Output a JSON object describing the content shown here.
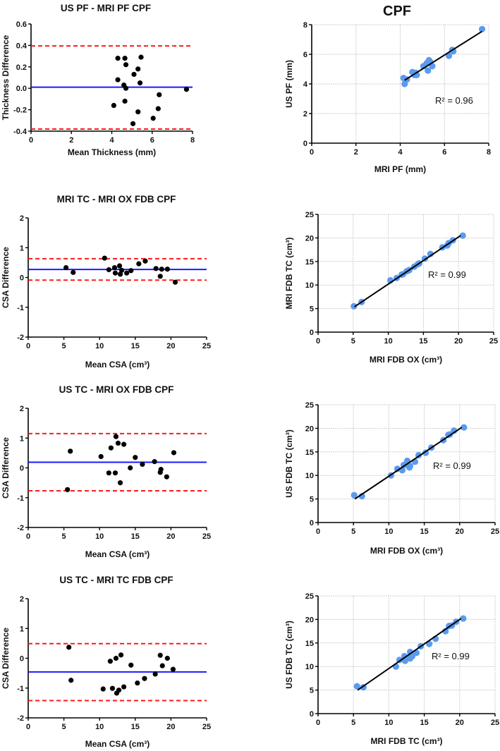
{
  "figure_title": "CPF",
  "colors": {
    "bland_altman_points": "#000000",
    "mean_line": "#1a1aff",
    "limits_of_agreement": "#ff1a1a",
    "scatter_points": "#5b9bef",
    "regression_line": "#000000",
    "grid": "#d0d0d0"
  },
  "chart_data": [
    {
      "type": "scatter",
      "title": "US PF - MRI PF CPF",
      "xlabel": "Mean Thickness (mm)",
      "ylabel": "Thickness Difference",
      "xlim": [
        0,
        8
      ],
      "ylim": [
        -0.4,
        0.6
      ],
      "xticks": [
        0,
        2,
        4,
        6,
        8
      ],
      "yticks": [
        "-0.4",
        "-0.2",
        "0.0",
        "0.2",
        "0.4",
        "0.6"
      ],
      "grid": false,
      "mean": 0.01,
      "limits": [
        0.395,
        -0.38
      ],
      "points": [
        [
          4.1,
          -0.16
        ],
        [
          4.3,
          0.28
        ],
        [
          4.3,
          0.08
        ],
        [
          4.65,
          0.28
        ],
        [
          4.7,
          0.22
        ],
        [
          4.6,
          0.03
        ],
        [
          4.7,
          0.0
        ],
        [
          4.65,
          -0.12
        ],
        [
          5.1,
          0.13
        ],
        [
          5.3,
          0.18
        ],
        [
          5.45,
          0.29
        ],
        [
          5.4,
          0.05
        ],
        [
          5.3,
          -0.22
        ],
        [
          5.05,
          -0.33
        ],
        [
          6.05,
          -0.28
        ],
        [
          6.3,
          -0.19
        ],
        [
          6.35,
          -0.06
        ],
        [
          7.7,
          -0.01
        ]
      ]
    },
    {
      "type": "scatter",
      "title": "MRI TC - MRI OX FDB CPF",
      "xlabel": "Mean CSA (cm³)",
      "ylabel": "CSA Difference",
      "xlim": [
        0,
        25
      ],
      "ylim": [
        -2,
        2
      ],
      "xticks": [
        0,
        5,
        10,
        15,
        20,
        25
      ],
      "yticks": [
        "-2",
        "-1",
        "0",
        "1",
        "2"
      ],
      "grid": false,
      "mean": 0.27,
      "limits": [
        0.63,
        -0.09
      ],
      "points": [
        [
          5.3,
          0.33
        ],
        [
          6.3,
          0.17
        ],
        [
          10.7,
          0.65
        ],
        [
          11.3,
          0.26
        ],
        [
          12.1,
          0.33
        ],
        [
          12.2,
          0.15
        ],
        [
          12.8,
          0.39
        ],
        [
          12.9,
          0.11
        ],
        [
          13.1,
          0.24
        ],
        [
          13.8,
          0.15
        ],
        [
          14.4,
          0.23
        ],
        [
          15.5,
          0.46
        ],
        [
          16.4,
          0.55
        ],
        [
          17.9,
          0.3
        ],
        [
          18.5,
          0.04
        ],
        [
          18.7,
          0.28
        ],
        [
          19.5,
          0.28
        ],
        [
          20.6,
          -0.16
        ]
      ]
    },
    {
      "type": "scatter",
      "title": "US TC - MRI OX FDB CPF",
      "xlabel": "Mean CSA (cm³)",
      "ylabel": "CSA Difference",
      "xlim": [
        0,
        25
      ],
      "ylim": [
        -2,
        2
      ],
      "xticks": [
        0,
        5,
        10,
        15,
        20,
        25
      ],
      "yticks": [
        "-2",
        "-1",
        "0",
        "1",
        "2"
      ],
      "grid": false,
      "mean": 0.19,
      "limits": [
        1.15,
        -0.77
      ],
      "points": [
        [
          5.5,
          -0.73
        ],
        [
          5.9,
          0.56
        ],
        [
          10.2,
          0.38
        ],
        [
          11.3,
          -0.17
        ],
        [
          11.6,
          0.67
        ],
        [
          12.2,
          -0.17
        ],
        [
          12.3,
          1.05
        ],
        [
          12.6,
          0.83
        ],
        [
          12.9,
          -0.5
        ],
        [
          13.4,
          0.79
        ],
        [
          14.3,
          0.0
        ],
        [
          15.0,
          0.35
        ],
        [
          16.0,
          0.12
        ],
        [
          17.7,
          0.21
        ],
        [
          18.5,
          -0.15
        ],
        [
          18.6,
          -0.05
        ],
        [
          19.4,
          -0.3
        ],
        [
          20.4,
          0.51
        ]
      ]
    },
    {
      "type": "scatter",
      "title": "US TC - MRI TC FDB CPF",
      "xlabel": "Mean CSA (cm³)",
      "ylabel": "CSA Difference",
      "xlim": [
        0,
        25
      ],
      "ylim": [
        -2,
        2
      ],
      "xticks": [
        0,
        5,
        10,
        15,
        20,
        25
      ],
      "yticks": [
        "-2",
        "-1",
        "0",
        "1",
        "2"
      ],
      "grid": false,
      "mean": -0.46,
      "limits": [
        0.49,
        -1.42
      ],
      "points": [
        [
          5.7,
          0.37
        ],
        [
          6.0,
          -0.74
        ],
        [
          10.5,
          -1.03
        ],
        [
          11.5,
          -0.1
        ],
        [
          11.8,
          -1.01
        ],
        [
          12.3,
          0.0
        ],
        [
          12.4,
          -1.17
        ],
        [
          12.7,
          -1.07
        ],
        [
          13.0,
          0.11
        ],
        [
          13.4,
          -0.96
        ],
        [
          14.4,
          -0.23
        ],
        [
          15.3,
          -0.83
        ],
        [
          16.3,
          -0.68
        ],
        [
          17.8,
          -0.53
        ],
        [
          18.5,
          0.1
        ],
        [
          18.8,
          -0.25
        ],
        [
          19.5,
          0.0
        ],
        [
          20.3,
          -0.37
        ]
      ]
    },
    {
      "type": "scatter",
      "title": "",
      "xlabel": "MRI PF (mm)",
      "ylabel": "US PF (mm)",
      "xlim": [
        0,
        8
      ],
      "ylim": [
        0,
        8
      ],
      "xticks": [
        0,
        2,
        4,
        6,
        8
      ],
      "yticks": [
        "0",
        "2",
        "4",
        "6",
        "8"
      ],
      "grid": true,
      "annotation": "R² = 0.96",
      "fit_line": [
        [
          4.2,
          4.25
        ],
        [
          7.7,
          7.55
        ]
      ],
      "points": [
        [
          4.15,
          4.4
        ],
        [
          4.2,
          4.0
        ],
        [
          4.3,
          4.3
        ],
        [
          4.55,
          4.8
        ],
        [
          4.6,
          4.75
        ],
        [
          4.65,
          4.6
        ],
        [
          4.75,
          4.6
        ],
        [
          4.7,
          4.75
        ],
        [
          5.05,
          5.2
        ],
        [
          5.2,
          5.4
        ],
        [
          5.25,
          4.9
        ],
        [
          5.3,
          5.6
        ],
        [
          5.35,
          5.5
        ],
        [
          5.45,
          5.2
        ],
        [
          6.2,
          5.9
        ],
        [
          6.35,
          6.3
        ],
        [
          6.4,
          6.2
        ],
        [
          7.7,
          7.7
        ]
      ]
    },
    {
      "type": "scatter",
      "title": "",
      "xlabel": "MRI FDB OX (cm³)",
      "ylabel": "MRI FDB TC (cm³)",
      "xlim": [
        0,
        25
      ],
      "ylim": [
        0,
        25
      ],
      "xticks": [
        0,
        5,
        10,
        15,
        20,
        25
      ],
      "yticks": [
        "0",
        "5",
        "10",
        "15",
        "20",
        "25"
      ],
      "grid": true,
      "annotation": "R² = 0.99",
      "fit_line": [
        [
          5.2,
          5.4
        ],
        [
          20.3,
          20.5
        ]
      ],
      "points": [
        [
          5.1,
          5.5
        ],
        [
          6.2,
          6.4
        ],
        [
          10.3,
          11.0
        ],
        [
          11.2,
          11.5
        ],
        [
          11.9,
          12.2
        ],
        [
          12.1,
          12.3
        ],
        [
          12.6,
          12.9
        ],
        [
          12.9,
          13.1
        ],
        [
          13.0,
          13.2
        ],
        [
          13.7,
          13.9
        ],
        [
          14.2,
          14.4
        ],
        [
          14.4,
          14.6
        ],
        [
          15.2,
          15.6
        ],
        [
          16.0,
          16.6
        ],
        [
          17.7,
          18.0
        ],
        [
          18.4,
          18.4
        ],
        [
          18.6,
          18.9
        ],
        [
          19.2,
          19.5
        ],
        [
          20.6,
          20.5
        ]
      ]
    },
    {
      "type": "scatter",
      "title": "",
      "xlabel": "MRI FDB OX (cm³)",
      "ylabel": "US FDB TC (cm³)",
      "xlim": [
        0,
        25
      ],
      "ylim": [
        0,
        25
      ],
      "xticks": [
        0,
        5,
        10,
        15,
        20,
        25
      ],
      "yticks": [
        "0",
        "5",
        "10",
        "15",
        "20",
        "25"
      ],
      "grid": true,
      "annotation": "R² = 0.99",
      "fit_line": [
        [
          5.2,
          5.0
        ],
        [
          20.3,
          20.2
        ]
      ],
      "points": [
        [
          5.1,
          5.8
        ],
        [
          6.2,
          5.6
        ],
        [
          10.3,
          10.0
        ],
        [
          11.2,
          11.4
        ],
        [
          11.9,
          11.1
        ],
        [
          12.1,
          12.2
        ],
        [
          12.6,
          13.1
        ],
        [
          12.7,
          12.1
        ],
        [
          12.9,
          11.7
        ],
        [
          13.0,
          12.0
        ],
        [
          13.7,
          12.9
        ],
        [
          14.2,
          14.3
        ],
        [
          15.2,
          14.8
        ],
        [
          16.0,
          15.9
        ],
        [
          17.7,
          17.5
        ],
        [
          18.4,
          18.6
        ],
        [
          18.6,
          18.7
        ],
        [
          19.2,
          19.5
        ],
        [
          20.6,
          20.2
        ]
      ]
    },
    {
      "type": "scatter",
      "title": "",
      "xlabel": "MRI FDB TC (cm³)",
      "ylabel": "US  FDB TC (cm³)",
      "xlim": [
        0,
        25
      ],
      "ylim": [
        0,
        25
      ],
      "xticks": [
        0,
        5,
        10,
        15,
        20,
        25
      ],
      "yticks": [
        "0",
        "5",
        "10",
        "15",
        "20",
        "25"
      ],
      "grid": true,
      "annotation": "R² = 0.99",
      "fit_line": [
        [
          5.6,
          5.0
        ],
        [
          20.2,
          20.2
        ]
      ],
      "points": [
        [
          5.5,
          5.8
        ],
        [
          6.4,
          5.6
        ],
        [
          11.0,
          10.0
        ],
        [
          11.5,
          11.4
        ],
        [
          12.2,
          12.2
        ],
        [
          12.3,
          11.2
        ],
        [
          12.5,
          11.8
        ],
        [
          13.0,
          13.1
        ],
        [
          13.0,
          11.7
        ],
        [
          13.3,
          12.2
        ],
        [
          13.9,
          12.9
        ],
        [
          14.5,
          14.3
        ],
        [
          15.7,
          14.8
        ],
        [
          16.6,
          15.9
        ],
        [
          18.0,
          17.5
        ],
        [
          18.5,
          18.6
        ],
        [
          18.9,
          18.7
        ],
        [
          19.5,
          19.5
        ],
        [
          20.5,
          20.2
        ]
      ]
    }
  ]
}
